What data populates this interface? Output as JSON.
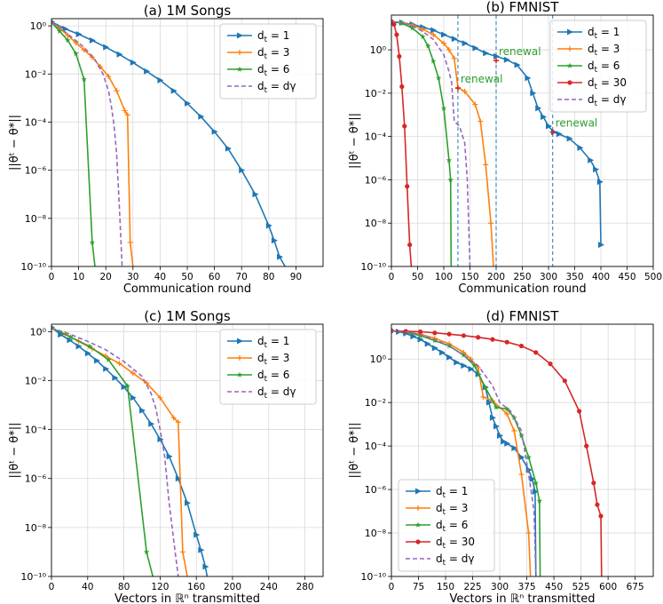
{
  "colors": {
    "c1": "#1f77b4",
    "c3": "#ff7f0e",
    "c6": "#2ca02c",
    "c30": "#d62728",
    "cg": "#9467bd",
    "grid": "#d9d9d9",
    "renewal_text": "#2ca02c",
    "renewal_mark": "#d62728"
  },
  "chart_data": [
    {
      "type": "line",
      "title": "(a) 1M Songs",
      "xlabel": "Communication round",
      "ylabel": "||θᵗ − θ*||",
      "yscale": "log",
      "xlim": [
        0,
        100
      ],
      "ylim": [
        1e-10,
        2
      ],
      "xticks": [
        0,
        10,
        20,
        30,
        40,
        50,
        60,
        70,
        80,
        90
      ],
      "yticks": [
        {
          "v": 1,
          "t": "10⁰"
        },
        {
          "v": 0.01,
          "t": "10⁻²"
        },
        {
          "v": 0.0001,
          "t": "10⁻⁴"
        },
        {
          "v": 1e-06,
          "t": "10⁻⁶"
        },
        {
          "v": 1e-08,
          "t": "10⁻⁸"
        },
        {
          "v": 1e-10,
          "t": "10⁻¹⁰"
        }
      ],
      "legend_position": "top-right",
      "series": [
        {
          "name": "d_t = 1",
          "color_key": "c1",
          "marker": "triangle-right",
          "dashed": false,
          "x": [
            0,
            5,
            10,
            15,
            20,
            25,
            30,
            35,
            40,
            45,
            50,
            55,
            60,
            65,
            70,
            75,
            80,
            82,
            84,
            86
          ],
          "y": [
            1.5,
            0.75,
            0.45,
            0.25,
            0.13,
            0.065,
            0.03,
            0.013,
            0.0055,
            0.002,
            0.0006,
            0.00017,
            4e-05,
            8e-06,
            1e-06,
            1e-07,
            5e-09,
            1.2e-09,
            2.5e-10,
            1e-10
          ]
        },
        {
          "name": "d_t = 3",
          "color_key": "c3",
          "marker": "plus",
          "dashed": false,
          "x": [
            0,
            3,
            6,
            9,
            12,
            15,
            18,
            21,
            24,
            27,
            28,
            29,
            30
          ],
          "y": [
            1.4,
            0.8,
            0.4,
            0.2,
            0.1,
            0.05,
            0.02,
            0.008,
            0.002,
            0.0003,
            0.0002,
            1e-09,
            1e-10
          ]
        },
        {
          "name": "d_t = 6",
          "color_key": "c6",
          "marker": "star",
          "dashed": false,
          "x": [
            0,
            3,
            6,
            9,
            12,
            15,
            16
          ],
          "y": [
            1.4,
            0.6,
            0.25,
            0.07,
            0.006,
            1e-09,
            1e-10
          ]
        },
        {
          "name": "d_t = d_γ",
          "color_key": "cg",
          "marker": "none",
          "dashed": true,
          "x": [
            0,
            4,
            8,
            12,
            16,
            19,
            21,
            22,
            23,
            24,
            25,
            26
          ],
          "y": [
            1.4,
            0.7,
            0.3,
            0.13,
            0.04,
            0.01,
            0.002,
            0.0005,
            8e-05,
            5e-06,
            3e-08,
            1e-10
          ]
        }
      ]
    },
    {
      "type": "line",
      "title": "(b) FMNIST",
      "xlabel": "Communication round",
      "ylabel": "||θᵗ − θ*||",
      "yscale": "log",
      "xlim": [
        0,
        500
      ],
      "ylim": [
        1e-10,
        40
      ],
      "xticks": [
        0,
        50,
        100,
        150,
        200,
        250,
        300,
        350,
        400,
        450,
        500
      ],
      "yticks": [
        {
          "v": 1,
          "t": "10⁰"
        },
        {
          "v": 0.01,
          "t": "10⁻²"
        },
        {
          "v": 0.0001,
          "t": "10⁻⁴"
        },
        {
          "v": 1e-06,
          "t": "10⁻⁶"
        },
        {
          "v": 1e-08,
          "t": "10⁻⁸"
        },
        {
          "v": 1e-10,
          "t": "10⁻¹⁰"
        }
      ],
      "legend_position": "top-right",
      "renewal_lines": [
        127,
        200,
        308
      ],
      "annotations": [
        {
          "text": "renewal",
          "x": 200,
          "y": 0.32
        },
        {
          "text": "renewal",
          "x": 127,
          "y": 0.017
        },
        {
          "text": "renewal",
          "x": 308,
          "y": 0.00016
        }
      ],
      "series": [
        {
          "name": "d_t = 1",
          "color_key": "c1",
          "marker": "triangle-right",
          "dashed": false,
          "x": [
            0,
            20,
            40,
            60,
            80,
            100,
            120,
            140,
            160,
            180,
            200,
            220,
            240,
            260,
            270,
            280,
            290,
            300,
            310,
            320,
            340,
            360,
            380,
            390,
            398,
            400
          ],
          "y": [
            20,
            18,
            15,
            11,
            8,
            5,
            3.2,
            2,
            1.2,
            0.7,
            0.5,
            0.35,
            0.2,
            0.05,
            0.01,
            0.002,
            0.0008,
            0.0003,
            0.00016,
            0.00013,
            8e-05,
            3e-05,
            8e-06,
            3e-06,
            8e-07,
            1e-09
          ]
        },
        {
          "name": "d_t = 3",
          "color_key": "c3",
          "marker": "plus",
          "dashed": false,
          "x": [
            0,
            20,
            40,
            60,
            80,
            100,
            110,
            120,
            127,
            140,
            160,
            170,
            180,
            190,
            195
          ],
          "y": [
            20,
            18,
            14,
            9,
            5,
            2,
            1,
            0.4,
            0.018,
            0.012,
            0.003,
            0.0005,
            5e-06,
            1e-08,
            1e-10
          ]
        },
        {
          "name": "d_t = 6",
          "color_key": "c6",
          "marker": "star",
          "dashed": false,
          "x": [
            0,
            20,
            40,
            60,
            70,
            80,
            90,
            100,
            110,
            113,
            114
          ],
          "y": [
            20,
            17,
            10,
            4,
            1.5,
            0.3,
            0.05,
            0.002,
            8e-06,
            1e-06,
            1e-10
          ]
        },
        {
          "name": "d_t = 30",
          "color_key": "c30",
          "marker": "circle",
          "dashed": false,
          "x": [
            0,
            5,
            10,
            15,
            20,
            25,
            30,
            35,
            38,
            40
          ],
          "y": [
            20,
            15,
            5,
            0.5,
            0.02,
            0.0003,
            5e-07,
            1e-09,
            1e-10,
            1e-10
          ]
        },
        {
          "name": "d_t = d_γ",
          "color_key": "cg",
          "marker": "none",
          "dashed": true,
          "x": [
            0,
            20,
            40,
            60,
            80,
            100,
            110,
            115,
            120,
            130,
            140,
            145,
            150
          ],
          "y": [
            20,
            18,
            13,
            7,
            3,
            0.6,
            0.1,
            0.03,
            0.0005,
            0.0003,
            5e-05,
            1e-06,
            1e-10
          ]
        }
      ]
    },
    {
      "type": "line",
      "title": "(c) 1M Songs",
      "xlabel": "Vectors in ℝⁿ transmitted",
      "ylabel": "||θᵗ − θ*||",
      "yscale": "log",
      "xlim": [
        0,
        300
      ],
      "ylim": [
        1e-10,
        2
      ],
      "xticks": [
        0,
        40,
        80,
        120,
        160,
        200,
        240,
        280
      ],
      "yticks": [
        {
          "v": 1,
          "t": "10⁰"
        },
        {
          "v": 0.01,
          "t": "10⁻²"
        },
        {
          "v": 0.0001,
          "t": "10⁻⁴"
        },
        {
          "v": 1e-06,
          "t": "10⁻⁶"
        },
        {
          "v": 1e-08,
          "t": "10⁻⁸"
        },
        {
          "v": 1e-10,
          "t": "10⁻¹⁰"
        }
      ],
      "legend_position": "top-right",
      "series": [
        {
          "name": "d_t = 1",
          "color_key": "c1",
          "marker": "triangle-right",
          "dashed": false,
          "x": [
            0,
            10,
            20,
            30,
            40,
            50,
            60,
            70,
            80,
            90,
            100,
            110,
            120,
            130,
            140,
            150,
            160,
            165,
            170,
            172
          ],
          "y": [
            1.5,
            0.75,
            0.45,
            0.25,
            0.13,
            0.065,
            0.03,
            0.013,
            0.0055,
            0.002,
            0.0006,
            0.00017,
            4e-05,
            8e-06,
            1e-06,
            1e-07,
            5e-09,
            1.2e-09,
            2.5e-10,
            1e-10
          ]
        },
        {
          "name": "d_t = 3",
          "color_key": "c3",
          "marker": "plus",
          "dashed": false,
          "x": [
            0,
            15,
            30,
            45,
            60,
            75,
            90,
            105,
            120,
            135,
            140,
            145,
            150
          ],
          "y": [
            1.4,
            0.8,
            0.4,
            0.2,
            0.1,
            0.05,
            0.02,
            0.008,
            0.002,
            0.0003,
            0.0002,
            1e-09,
            1e-10
          ]
        },
        {
          "name": "d_t = 6",
          "color_key": "c6",
          "marker": "star",
          "dashed": false,
          "x": [
            0,
            21,
            42,
            63,
            84,
            105,
            112
          ],
          "y": [
            1.4,
            0.6,
            0.25,
            0.07,
            0.006,
            1e-09,
            1e-10
          ]
        },
        {
          "name": "d_t = d_γ",
          "color_key": "cg",
          "marker": "none",
          "dashed": true,
          "x": [
            0,
            20,
            40,
            60,
            80,
            100,
            110,
            115,
            120,
            125,
            130,
            135,
            140
          ],
          "y": [
            1.4,
            0.8,
            0.4,
            0.18,
            0.06,
            0.015,
            0.003,
            0.0008,
            0.0001,
            8e-06,
            1e-07,
            3e-09,
            1e-10
          ]
        }
      ]
    },
    {
      "type": "line",
      "title": "(d) FMNIST",
      "xlabel": "Vectors in ℝⁿ transmitted",
      "ylabel": "||θᵗ − θ*||",
      "yscale": "log",
      "xlim": [
        0,
        725
      ],
      "ylim": [
        1e-10,
        40
      ],
      "xticks": [
        0,
        75,
        150,
        225,
        300,
        375,
        450,
        525,
        600,
        675
      ],
      "yticks": [
        {
          "v": 1,
          "t": "10⁰"
        },
        {
          "v": 0.01,
          "t": "10⁻²"
        },
        {
          "v": 0.0001,
          "t": "10⁻⁴"
        },
        {
          "v": 1e-06,
          "t": "10⁻⁶"
        },
        {
          "v": 1e-08,
          "t": "10⁻⁸"
        },
        {
          "v": 1e-10,
          "t": "10⁻¹⁰"
        }
      ],
      "legend_position": "bottom-left",
      "series": [
        {
          "name": "d_t = 1",
          "color_key": "c1",
          "marker": "triangle-right",
          "dashed": false,
          "x": [
            0,
            20,
            40,
            60,
            80,
            100,
            120,
            140,
            160,
            180,
            200,
            220,
            240,
            260,
            270,
            280,
            290,
            300,
            310,
            320,
            340,
            360,
            380,
            390,
            398,
            400
          ],
          "y": [
            20,
            18,
            15,
            11,
            8,
            5,
            3.2,
            2,
            1.2,
            0.7,
            0.5,
            0.35,
            0.2,
            0.05,
            0.01,
            0.002,
            0.0008,
            0.0003,
            0.00016,
            0.00013,
            8e-05,
            3e-05,
            8e-06,
            3e-06,
            8e-07,
            1e-10
          ]
        },
        {
          "name": "d_t = 3",
          "color_key": "c3",
          "marker": "plus",
          "dashed": false,
          "x": [
            0,
            40,
            80,
            120,
            160,
            200,
            220,
            240,
            254,
            280,
            320,
            340,
            360,
            380,
            385
          ],
          "y": [
            20,
            18,
            14,
            9,
            5,
            2,
            1,
            0.4,
            0.018,
            0.012,
            0.003,
            0.0005,
            5e-06,
            1e-08,
            1e-10
          ]
        },
        {
          "name": "d_t = 6",
          "color_key": "c6",
          "marker": "star",
          "dashed": false,
          "x": [
            0,
            40,
            80,
            120,
            160,
            200,
            230,
            260,
            290,
            320,
            340,
            360,
            380,
            400,
            410,
            412
          ],
          "y": [
            20,
            17,
            12,
            7,
            4,
            1.5,
            0.5,
            0.05,
            0.006,
            0.005,
            0.002,
            0.0003,
            3e-05,
            2e-06,
            3e-07,
            1e-10
          ]
        },
        {
          "name": "d_t = 30",
          "color_key": "c30",
          "marker": "circle",
          "dashed": false,
          "x": [
            0,
            40,
            80,
            120,
            160,
            200,
            240,
            280,
            320,
            360,
            400,
            440,
            480,
            520,
            540,
            560,
            570,
            580,
            582
          ],
          "y": [
            20,
            19,
            18,
            16,
            14,
            12,
            10,
            8,
            6,
            4,
            2,
            0.6,
            0.1,
            0.004,
            0.0001,
            2e-06,
            2e-07,
            6e-08,
            1e-10
          ]
        },
        {
          "name": "d_t = d_γ",
          "color_key": "cg",
          "marker": "none",
          "dashed": true,
          "x": [
            0,
            40,
            80,
            120,
            160,
            200,
            240,
            280,
            300,
            330,
            360,
            380,
            395,
            400
          ],
          "y": [
            20,
            18,
            13,
            8,
            4,
            1.5,
            0.5,
            0.06,
            0.01,
            0.004,
            0.0005,
            5e-06,
            1e-07,
            1e-10
          ]
        }
      ]
    }
  ]
}
